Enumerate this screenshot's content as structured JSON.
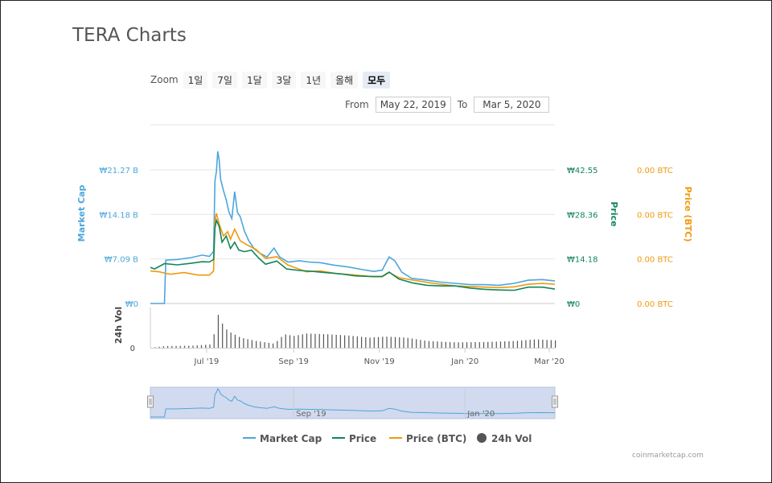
{
  "page": {
    "title": "TERA Charts",
    "credit": "coinmarketcap.com"
  },
  "toolbar": {
    "zoom_label": "Zoom",
    "zoom_buttons": [
      "1일",
      "7일",
      "1달",
      "3달",
      "1년",
      "올해",
      "모두"
    ],
    "active_zoom": "모두",
    "from_label": "From",
    "to_label": "To",
    "from_value": "May 22, 2019",
    "to_value": "Mar 5, 2020"
  },
  "colors": {
    "market_cap": "#4da6dc",
    "price": "#12865b",
    "price_btc": "#f09a0e",
    "volume": "#555555",
    "grid": "#e6e6e6",
    "navigator_fill": "#d1daee"
  },
  "chart_data": {
    "type": "line",
    "x_range": [
      "2019-05-22",
      "2020-03-05"
    ],
    "x_ticks": [
      "Jul '19",
      "Sep '19",
      "Nov '19",
      "Jan '20",
      "Mar '20"
    ],
    "navigator_ticks": [
      "Sep '19",
      "Jan '20"
    ],
    "axes": {
      "market_cap": {
        "title": "Market Cap",
        "ticks": [
          "₩0",
          "₩7.09 B",
          "₩14.18 B",
          "₩21.27 B"
        ],
        "max": 21.27
      },
      "price": {
        "title": "Price",
        "ticks": [
          "₩0",
          "₩14.18",
          "₩28.36",
          "₩42.55"
        ],
        "max": 42.55
      },
      "price_btc": {
        "title": "Price (BTC)",
        "ticks": [
          "0.00 BTC",
          "0.00 BTC",
          "0.00 BTC",
          "0.00 BTC"
        ]
      },
      "volume": {
        "title": "24h Vol",
        "ticks": [
          "0"
        ]
      }
    },
    "legend": [
      "Market Cap",
      "Price",
      "Price (BTC)",
      "24h Vol"
    ],
    "series": [
      {
        "name": "Market Cap",
        "unit": "₩ B",
        "points": [
          [
            "2019-05-22",
            0
          ],
          [
            "2019-06-01",
            0
          ],
          [
            "2019-06-02",
            6.9
          ],
          [
            "2019-06-10",
            7.0
          ],
          [
            "2019-06-20",
            7.3
          ],
          [
            "2019-06-28",
            7.7
          ],
          [
            "2019-07-03",
            7.5
          ],
          [
            "2019-07-06",
            8.3
          ],
          [
            "2019-07-07",
            19.5
          ],
          [
            "2019-07-08",
            21.0
          ],
          [
            "2019-07-09",
            24.2
          ],
          [
            "2019-07-10",
            22.8
          ],
          [
            "2019-07-11",
            19.8
          ],
          [
            "2019-07-13",
            18.0
          ],
          [
            "2019-07-15",
            16.5
          ],
          [
            "2019-07-17",
            14.5
          ],
          [
            "2019-07-19",
            13.5
          ],
          [
            "2019-07-21",
            17.8
          ],
          [
            "2019-07-23",
            14.5
          ],
          [
            "2019-07-25",
            13.8
          ],
          [
            "2019-07-28",
            11.5
          ],
          [
            "2019-07-31",
            10.0
          ],
          [
            "2019-08-04",
            8.7
          ],
          [
            "2019-08-08",
            8.0
          ],
          [
            "2019-08-13",
            7.4
          ],
          [
            "2019-08-18",
            8.8
          ],
          [
            "2019-08-22",
            7.4
          ],
          [
            "2019-08-28",
            6.6
          ],
          [
            "2019-09-05",
            6.8
          ],
          [
            "2019-09-12",
            6.6
          ],
          [
            "2019-09-20",
            6.5
          ],
          [
            "2019-09-30",
            6.1
          ],
          [
            "2019-10-10",
            5.8
          ],
          [
            "2019-10-20",
            5.4
          ],
          [
            "2019-10-28",
            5.1
          ],
          [
            "2019-11-03",
            5.3
          ],
          [
            "2019-11-08",
            7.4
          ],
          [
            "2019-11-12",
            6.8
          ],
          [
            "2019-11-17",
            5.0
          ],
          [
            "2019-11-24",
            4.0
          ],
          [
            "2019-12-05",
            3.7
          ],
          [
            "2019-12-15",
            3.4
          ],
          [
            "2019-12-25",
            3.2
          ],
          [
            "2020-01-05",
            3.0
          ],
          [
            "2020-01-15",
            3.0
          ],
          [
            "2020-01-25",
            2.9
          ],
          [
            "2020-02-05",
            3.2
          ],
          [
            "2020-02-15",
            3.7
          ],
          [
            "2020-02-25",
            3.8
          ],
          [
            "2020-03-05",
            3.6
          ]
        ]
      },
      {
        "name": "Price",
        "unit": "₩",
        "points": [
          [
            "2019-05-22",
            11.5
          ],
          [
            "2019-05-25",
            11.0
          ],
          [
            "2019-06-01",
            12.7
          ],
          [
            "2019-06-10",
            12.3
          ],
          [
            "2019-06-20",
            12.8
          ],
          [
            "2019-06-28",
            13.3
          ],
          [
            "2019-07-03",
            13.2
          ],
          [
            "2019-07-06",
            14.0
          ],
          [
            "2019-07-07",
            24.0
          ],
          [
            "2019-07-08",
            26.5
          ],
          [
            "2019-07-10",
            24.5
          ],
          [
            "2019-07-12",
            19.5
          ],
          [
            "2019-07-15",
            21.5
          ],
          [
            "2019-07-18",
            17.5
          ],
          [
            "2019-07-21",
            19.5
          ],
          [
            "2019-07-24",
            17.0
          ],
          [
            "2019-07-28",
            16.5
          ],
          [
            "2019-08-02",
            17.0
          ],
          [
            "2019-08-07",
            14.5
          ],
          [
            "2019-08-12",
            12.5
          ],
          [
            "2019-08-20",
            13.5
          ],
          [
            "2019-08-27",
            11.0
          ],
          [
            "2019-09-05",
            10.5
          ],
          [
            "2019-09-15",
            10.2
          ],
          [
            "2019-09-25",
            9.8
          ],
          [
            "2019-10-05",
            9.4
          ],
          [
            "2019-10-15",
            8.8
          ],
          [
            "2019-10-25",
            8.6
          ],
          [
            "2019-11-03",
            8.6
          ],
          [
            "2019-11-08",
            10.0
          ],
          [
            "2019-11-15",
            7.8
          ],
          [
            "2019-11-25",
            6.5
          ],
          [
            "2019-12-05",
            5.8
          ],
          [
            "2019-12-15",
            5.6
          ],
          [
            "2019-12-25",
            5.6
          ],
          [
            "2020-01-05",
            4.9
          ],
          [
            "2020-01-15",
            4.5
          ],
          [
            "2020-01-25",
            4.3
          ],
          [
            "2020-02-05",
            4.2
          ],
          [
            "2020-02-15",
            5.2
          ],
          [
            "2020-02-25",
            5.2
          ],
          [
            "2020-03-05",
            4.6
          ]
        ]
      },
      {
        "name": "Price (BTC)",
        "unit": "BTC (scaled)",
        "points": [
          [
            "2019-05-22",
            3.9
          ],
          [
            "2019-05-28",
            3.8
          ],
          [
            "2019-06-05",
            3.5
          ],
          [
            "2019-06-15",
            3.7
          ],
          [
            "2019-06-25",
            3.4
          ],
          [
            "2019-07-03",
            3.4
          ],
          [
            "2019-07-06",
            3.9
          ],
          [
            "2019-07-07",
            10.0
          ],
          [
            "2019-07-08",
            10.8
          ],
          [
            "2019-07-10",
            9.5
          ],
          [
            "2019-07-13",
            8.1
          ],
          [
            "2019-07-16",
            8.6
          ],
          [
            "2019-07-18",
            7.7
          ],
          [
            "2019-07-21",
            8.9
          ],
          [
            "2019-07-25",
            7.5
          ],
          [
            "2019-07-30",
            7.0
          ],
          [
            "2019-08-05",
            6.5
          ],
          [
            "2019-08-12",
            5.4
          ],
          [
            "2019-08-20",
            5.6
          ],
          [
            "2019-08-28",
            4.6
          ],
          [
            "2019-09-10",
            3.8
          ],
          [
            "2019-09-20",
            3.9
          ],
          [
            "2019-10-01",
            3.6
          ],
          [
            "2019-10-15",
            3.4
          ],
          [
            "2019-10-28",
            3.2
          ],
          [
            "2019-11-03",
            3.2
          ],
          [
            "2019-11-08",
            3.7
          ],
          [
            "2019-11-15",
            3.1
          ],
          [
            "2019-11-25",
            2.8
          ],
          [
            "2019-12-10",
            2.4
          ],
          [
            "2019-12-25",
            2.1
          ],
          [
            "2020-01-10",
            2.0
          ],
          [
            "2020-01-25",
            1.9
          ],
          [
            "2020-02-05",
            2.0
          ],
          [
            "2020-02-15",
            2.3
          ],
          [
            "2020-02-25",
            2.4
          ],
          [
            "2020-03-05",
            2.3
          ]
        ]
      },
      {
        "name": "24h Vol",
        "unit": "relative",
        "points": [
          [
            "2019-05-22",
            0
          ],
          [
            "2019-06-01",
            0.05
          ],
          [
            "2019-06-20",
            0.06
          ],
          [
            "2019-07-05",
            0.1
          ],
          [
            "2019-07-08",
            1.0
          ],
          [
            "2019-07-10",
            0.95
          ],
          [
            "2019-07-13",
            0.6
          ],
          [
            "2019-07-18",
            0.45
          ],
          [
            "2019-07-25",
            0.3
          ],
          [
            "2019-08-05",
            0.2
          ],
          [
            "2019-08-18",
            0.12
          ],
          [
            "2019-08-25",
            0.4
          ],
          [
            "2019-09-01",
            0.35
          ],
          [
            "2019-09-10",
            0.42
          ],
          [
            "2019-09-25",
            0.4
          ],
          [
            "2019-10-10",
            0.36
          ],
          [
            "2019-10-25",
            0.3
          ],
          [
            "2019-11-05",
            0.33
          ],
          [
            "2019-11-20",
            0.3
          ],
          [
            "2019-12-05",
            0.2
          ],
          [
            "2019-12-25",
            0.16
          ],
          [
            "2020-01-15",
            0.17
          ],
          [
            "2020-02-05",
            0.2
          ],
          [
            "2020-02-20",
            0.25
          ],
          [
            "2020-03-05",
            0.22
          ]
        ]
      }
    ]
  }
}
